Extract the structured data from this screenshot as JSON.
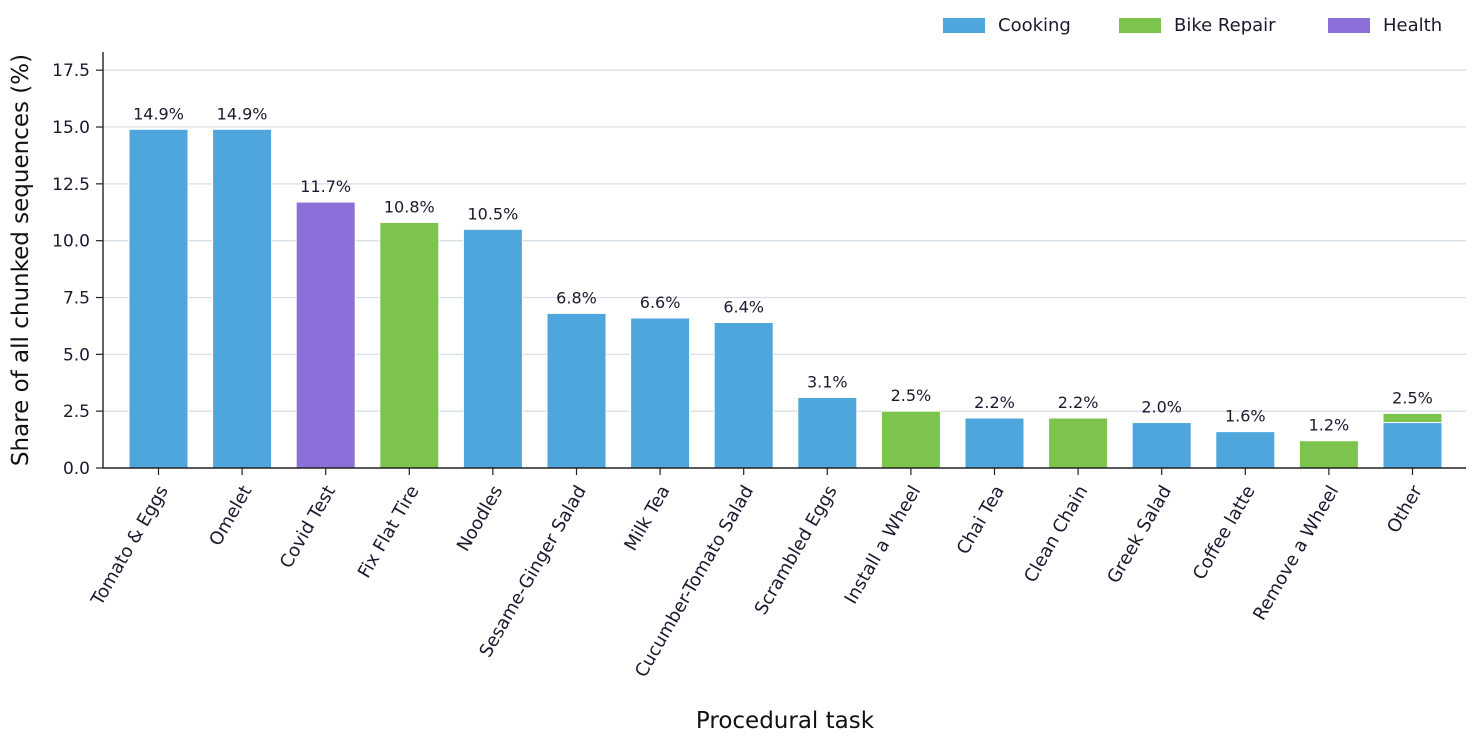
{
  "chart_data": {
    "type": "bar",
    "stacked": true,
    "xlabel": "Procedural task",
    "ylabel": "Share of all chunked sequences (%)",
    "ylim": [
      0,
      18.3
    ],
    "yticks": [
      "0.0",
      "2.5",
      "5.0",
      "7.5",
      "10.0",
      "12.5",
      "15.0",
      "17.5"
    ],
    "grid": "horizontal",
    "legend_position": "top-right",
    "legend": [
      {
        "name": "Cooking",
        "color": "#4fa6dc"
      },
      {
        "name": "Bike Repair",
        "color": "#7dc44e"
      },
      {
        "name": "Health",
        "color": "#8c6fd8"
      }
    ],
    "categories": [
      "Tomato & Eggs",
      "Omelet",
      "Covid Test",
      "Fix Flat Tire",
      "Noodles",
      "Sesame-Ginger Salad",
      "Milk Tea",
      "Cucumber-Tomato Salad",
      "Scrambled Eggs",
      "Install a Wheel",
      "Chai Tea",
      "Clean Chain",
      "Greek Salad",
      "Coffee latte",
      "Remove a Wheel",
      "Other"
    ],
    "series": [
      {
        "name": "Cooking",
        "values": [
          14.9,
          14.9,
          0,
          0,
          10.5,
          6.8,
          6.6,
          6.4,
          3.1,
          0,
          2.2,
          0,
          2.0,
          1.6,
          0,
          2.0
        ]
      },
      {
        "name": "Bike Repair",
        "values": [
          0,
          0,
          0,
          10.8,
          0,
          0,
          0,
          0,
          0,
          2.5,
          0,
          2.2,
          0,
          0,
          1.2,
          0.4
        ]
      },
      {
        "name": "Health",
        "values": [
          0,
          0,
          11.7,
          0,
          0,
          0,
          0,
          0,
          0,
          0,
          0,
          0,
          0,
          0,
          0,
          0
        ]
      }
    ],
    "data_labels": [
      "14.9%",
      "14.9%",
      "11.7%",
      "10.8%",
      "10.5%",
      "6.8%",
      "6.6%",
      "6.4%",
      "3.1%",
      "2.5%",
      "2.2%",
      "2.2%",
      "2.0%",
      "1.6%",
      "1.2%",
      "2.5%"
    ]
  }
}
